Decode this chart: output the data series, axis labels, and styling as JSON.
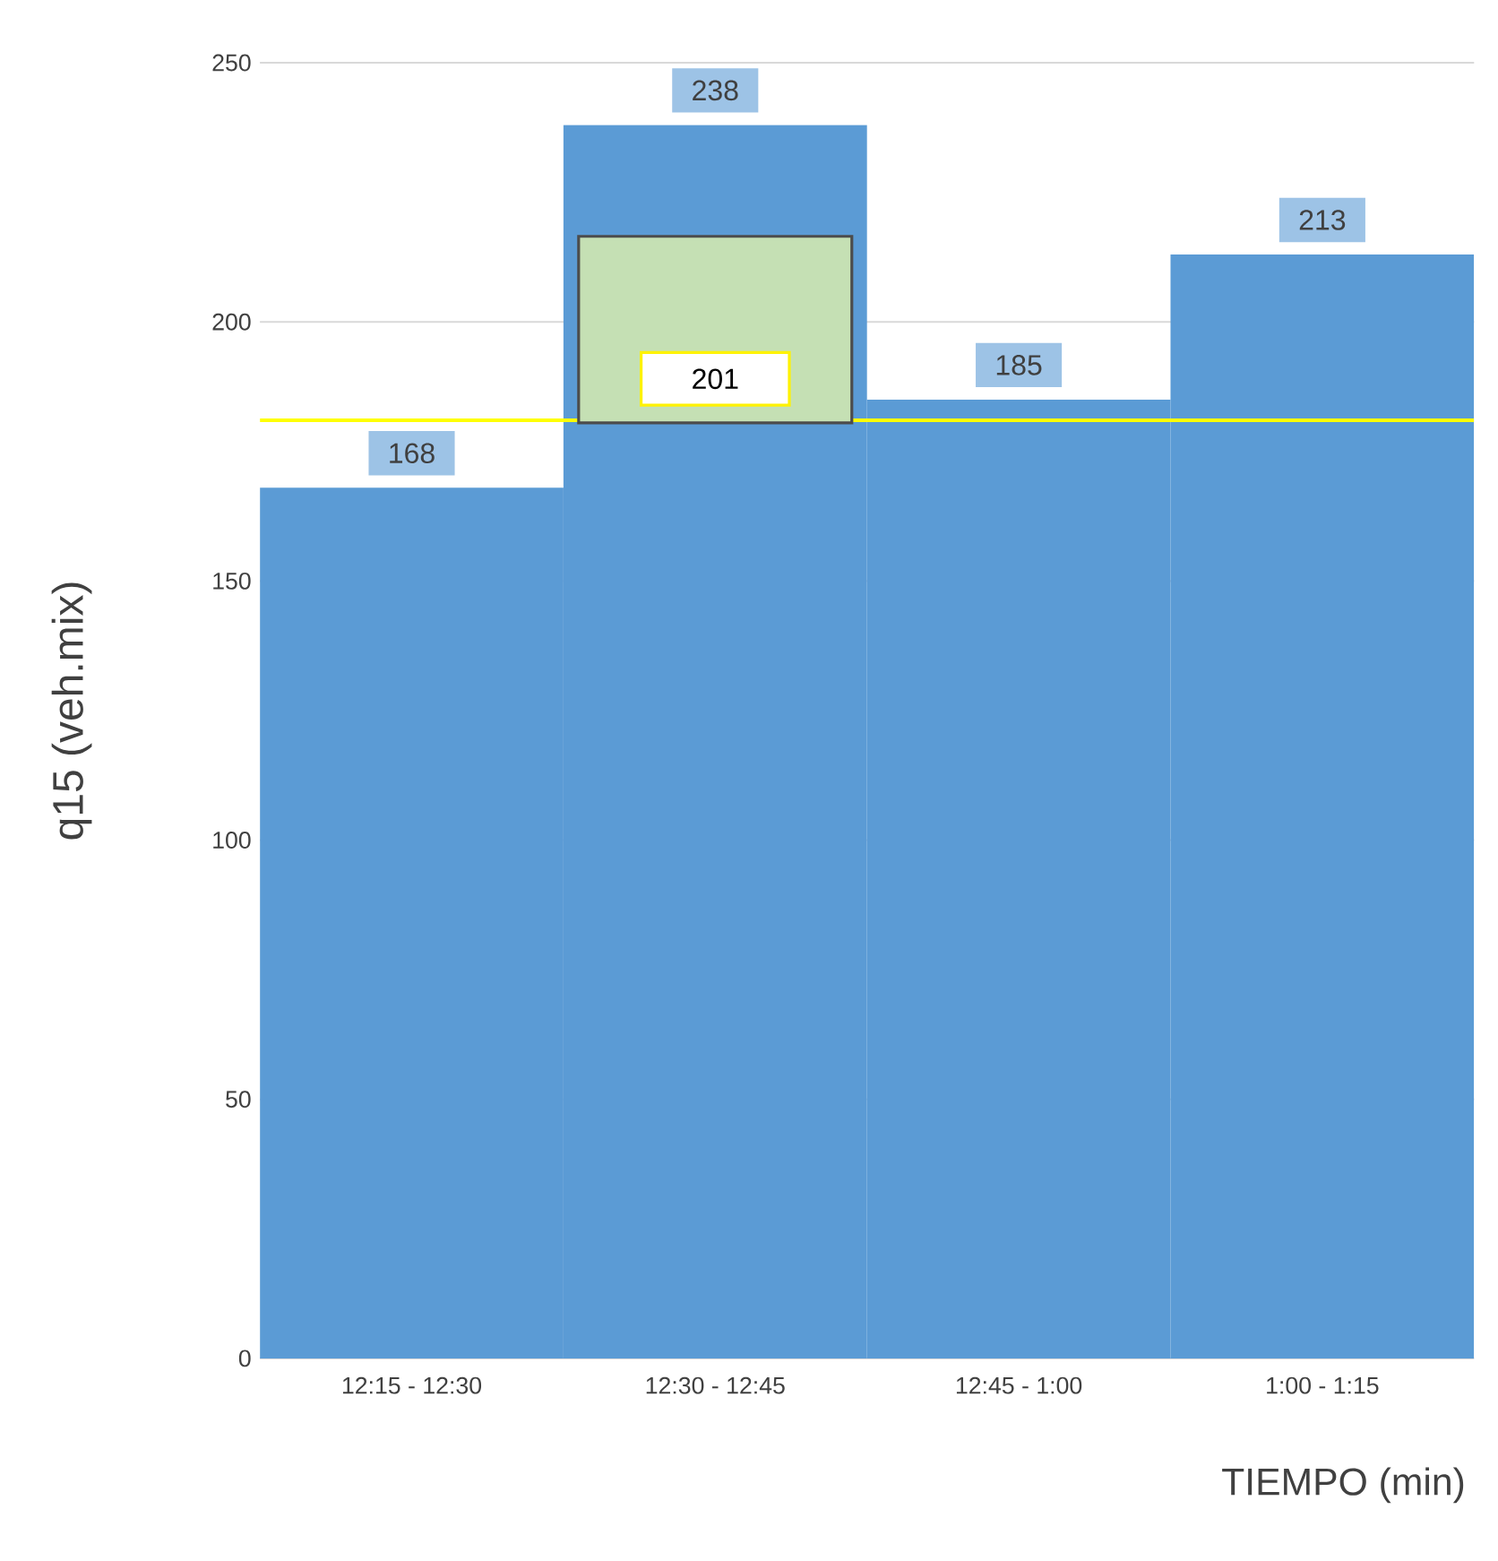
{
  "chart_data": {
    "type": "bar",
    "categories": [
      "12:15 - 12:30",
      "12:30 - 12:45",
      "12:45 - 1:00",
      "1:00 - 1:15"
    ],
    "values": [
      168,
      238,
      185,
      213
    ],
    "color": "#5b9bd5",
    "data_labels": true,
    "ylim": [
      0,
      250
    ],
    "yticks": [
      0,
      50,
      100,
      150,
      200,
      250
    ],
    "grid": "y",
    "ylabel": "q15 (veh.mix)",
    "xlabel": "TIEMPO (min)",
    "ref_lines": [
      {
        "axis": "y",
        "value": 181,
        "color": "#ffff00"
      }
    ],
    "annotations": [
      "201"
    ]
  }
}
